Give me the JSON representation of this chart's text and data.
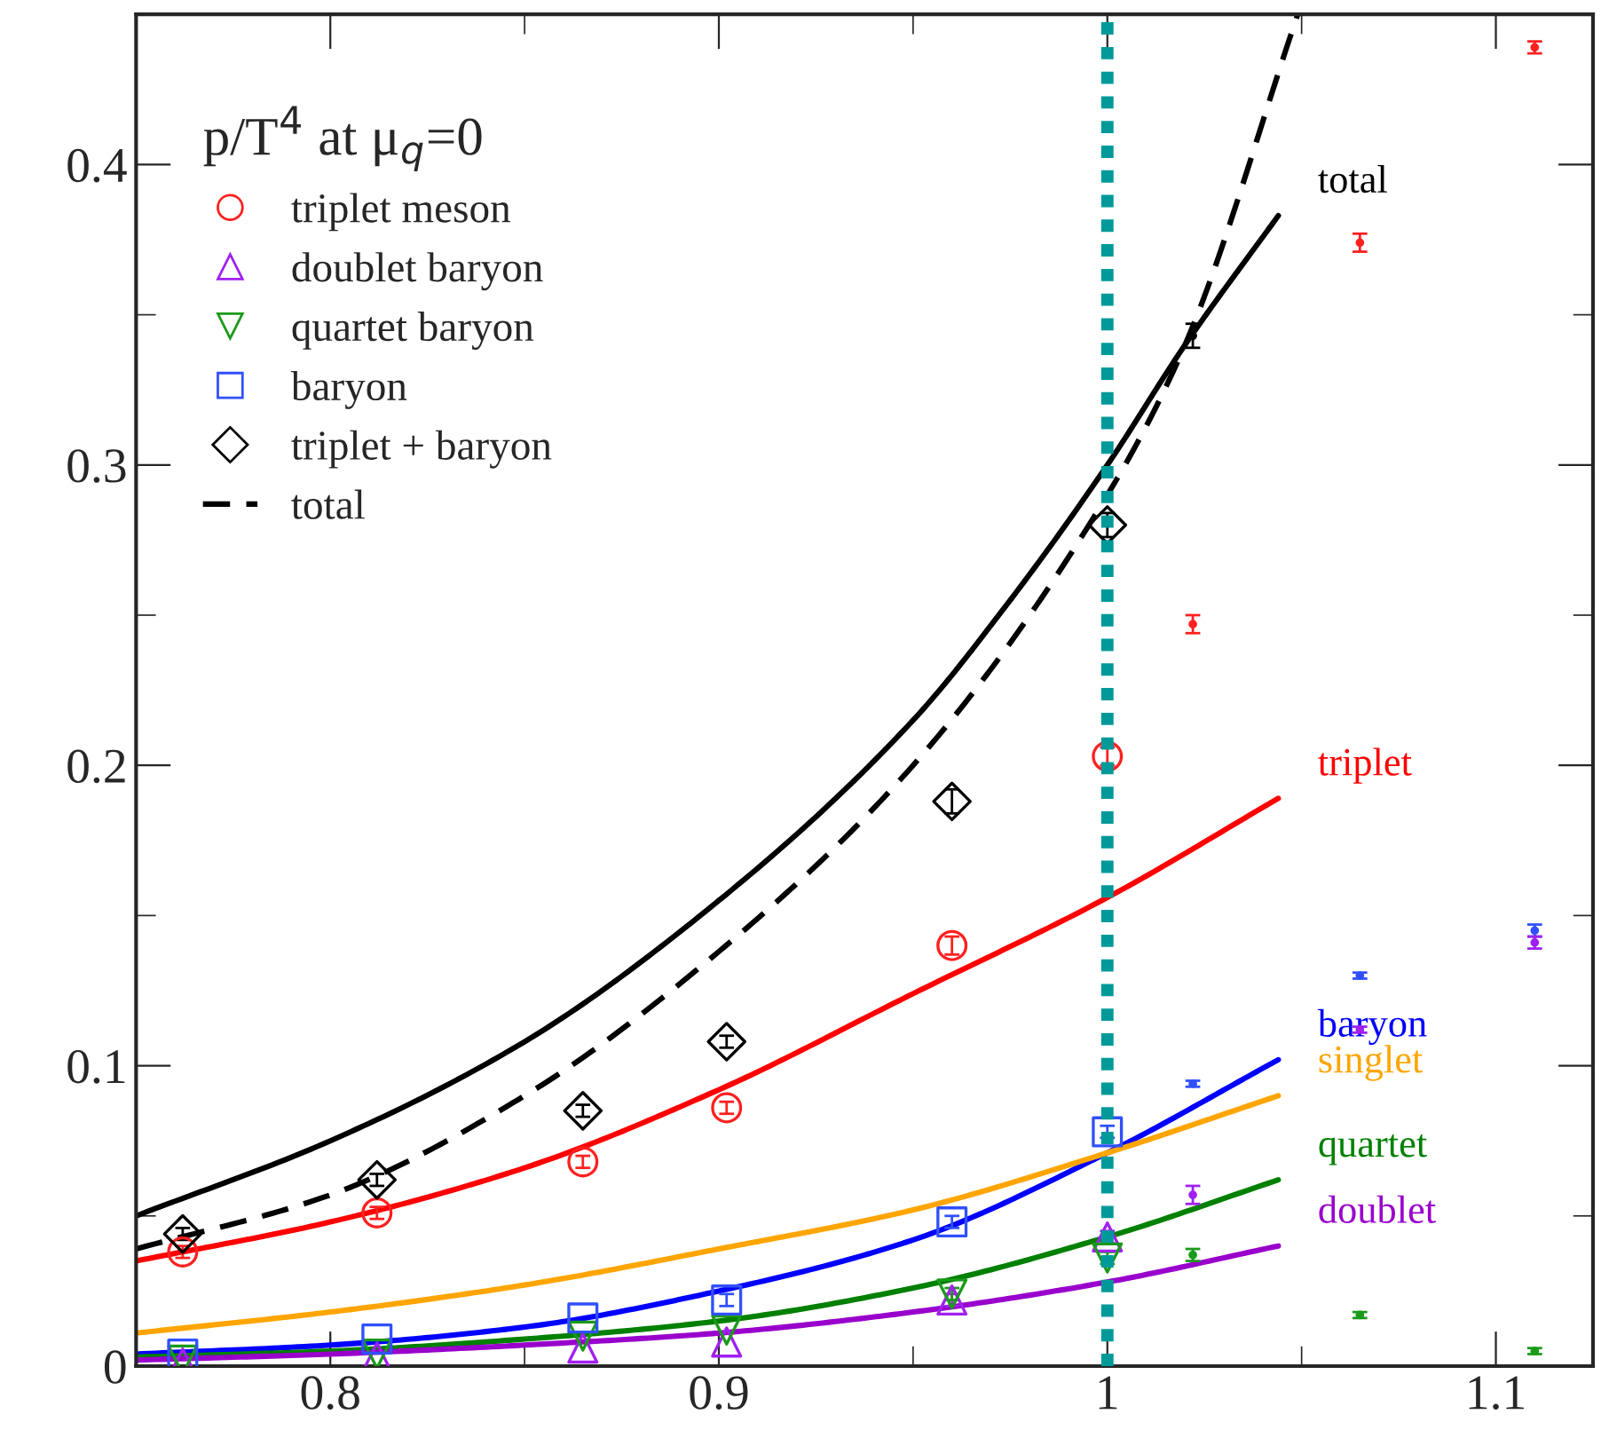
{
  "chart_data": {
    "type": "line",
    "legend_title": "p/T$^{4}$ at μ$_{q}$=0",
    "xlim": [
      0.75,
      1.125
    ],
    "ylim": [
      0,
      0.45
    ],
    "xticks": [
      0.8,
      0.9,
      1,
      1.1
    ],
    "yticks": [
      0,
      0.1,
      0.2,
      0.3,
      0.4
    ],
    "legend": "top left",
    "grid": false,
    "ref_lines": [
      {
        "axis": "x",
        "value": 1.0,
        "color": "#009999",
        "line_style": "dotted"
      }
    ],
    "series": [
      {
        "name": "triplet meson",
        "type": "scatter",
        "marker": "circle",
        "color": "#ff2020",
        "x": [
          0.762,
          0.812,
          0.865,
          0.902,
          0.96,
          1.0
        ],
        "values": [
          0.038,
          0.051,
          0.068,
          0.086,
          0.14,
          0.203
        ],
        "errors": [
          0.002,
          0.002,
          0.002,
          0.002,
          0.003,
          0.003
        ]
      },
      {
        "name": "doublet baryon",
        "type": "scatter",
        "marker": "triangle",
        "color": "#a020f0",
        "x": [
          0.762,
          0.812,
          0.865,
          0.902,
          0.96,
          1.0
        ],
        "values": [
          0.001,
          0.003,
          0.006,
          0.008,
          0.022,
          0.043
        ],
        "errors": [
          null,
          null,
          null,
          null,
          0.002,
          0.002
        ]
      },
      {
        "name": "quartet baryon",
        "type": "scatter",
        "marker": "triangle_down",
        "color": "#1a9a1a",
        "x": [
          0.762,
          0.812,
          0.865,
          0.902,
          0.96,
          1.0
        ],
        "values": [
          0.002,
          0.004,
          0.01,
          0.012,
          0.024,
          0.036
        ],
        "errors": [
          null,
          null,
          null,
          null,
          0.002,
          0.002
        ]
      },
      {
        "name": "baryon",
        "type": "scatter",
        "marker": "square",
        "color": "#3050ff",
        "x": [
          0.762,
          0.812,
          0.865,
          0.902,
          0.96,
          1.0
        ],
        "values": [
          0.004,
          0.009,
          0.016,
          0.022,
          0.048,
          0.078
        ],
        "errors": [
          null,
          null,
          null,
          0.002,
          0.002,
          0.002
        ]
      },
      {
        "name": "triplet + baryon",
        "type": "scatter",
        "marker": "diamond",
        "color": "#000000",
        "x": [
          0.762,
          0.812,
          0.865,
          0.902,
          0.96,
          1.0
        ],
        "values": [
          0.044,
          0.062,
          0.085,
          0.108,
          0.188,
          0.28
        ],
        "errors": [
          0.002,
          0.002,
          0.002,
          0.002,
          0.004,
          0.004
        ]
      },
      {
        "name": "total",
        "line_style": "dashed",
        "color": "#000000",
        "x": [
          0.75,
          0.8,
          0.85,
          0.9,
          0.95,
          1.0,
          1.02,
          1.049
        ],
        "values": [
          0.039,
          0.057,
          0.09,
          0.138,
          0.2,
          0.29,
          0.34,
          0.45
        ]
      },
      {
        "name": "total",
        "line_style": "solid",
        "color": "#000000",
        "x": [
          0.75,
          0.8,
          0.85,
          0.9,
          0.95,
          0.975,
          1.0,
          1.02,
          1.044
        ],
        "values": [
          0.05,
          0.075,
          0.108,
          0.155,
          0.215,
          0.255,
          0.3,
          0.34,
          0.383
        ]
      },
      {
        "name": "triplet",
        "line_style": "solid",
        "color": "#ff0000",
        "x": [
          0.75,
          0.8,
          0.85,
          0.9,
          0.95,
          1.0,
          1.044
        ],
        "values": [
          0.035,
          0.048,
          0.066,
          0.092,
          0.124,
          0.156,
          0.189
        ]
      },
      {
        "name": "baryon",
        "line_style": "solid",
        "color": "#0000ff",
        "x": [
          0.75,
          0.8,
          0.85,
          0.9,
          0.95,
          1.0,
          1.044
        ],
        "values": [
          0.004,
          0.007,
          0.013,
          0.025,
          0.042,
          0.071,
          0.102
        ]
      },
      {
        "name": "singlet",
        "line_style": "solid",
        "color": "#ffa500",
        "x": [
          0.75,
          0.8,
          0.85,
          0.9,
          0.95,
          1.0,
          1.044
        ],
        "values": [
          0.011,
          0.018,
          0.027,
          0.039,
          0.052,
          0.071,
          0.09
        ]
      },
      {
        "name": "quartet",
        "line_style": "solid",
        "color": "#008000",
        "x": [
          0.75,
          0.8,
          0.85,
          0.9,
          0.95,
          1.0,
          1.044
        ],
        "values": [
          0.003,
          0.005,
          0.009,
          0.015,
          0.026,
          0.043,
          0.062
        ]
      },
      {
        "name": "doublet",
        "line_style": "solid",
        "color": "#9900cc",
        "x": [
          0.75,
          0.8,
          0.85,
          0.9,
          0.95,
          1.0,
          1.044
        ],
        "values": [
          0.002,
          0.004,
          0.007,
          0.011,
          0.018,
          0.028,
          0.04
        ]
      },
      {
        "type": "scatter",
        "marker": "none",
        "color": "#ff2020",
        "x": [
          1.022,
          1.065,
          1.11
        ],
        "values": [
          0.247,
          0.374,
          0.439
        ],
        "errors": [
          0.003,
          0.003,
          0.002
        ]
      },
      {
        "type": "scatter",
        "marker": "none",
        "color": "#000000",
        "x": [
          1.022
        ],
        "values": [
          0.343
        ],
        "errors": [
          0.004
        ]
      },
      {
        "type": "scatter",
        "marker": "none",
        "color": "#3050ff",
        "x": [
          1.022,
          1.065,
          1.11
        ],
        "values": [
          0.094,
          0.13,
          0.145
        ],
        "errors": [
          0.001,
          0.001,
          0.002
        ]
      },
      {
        "type": "scatter",
        "marker": "none",
        "color": "#a020f0",
        "x": [
          1.022,
          1.065,
          1.11
        ],
        "values": [
          0.057,
          0.112,
          0.141
        ],
        "errors": [
          0.003,
          0.001,
          0.002
        ]
      },
      {
        "type": "scatter",
        "marker": "none",
        "color": "#1a9a1a",
        "x": [
          1.022,
          1.065,
          1.11
        ],
        "values": [
          0.037,
          0.017,
          0.005
        ],
        "errors": [
          0.002,
          0.001,
          0.001
        ]
      }
    ]
  }
}
